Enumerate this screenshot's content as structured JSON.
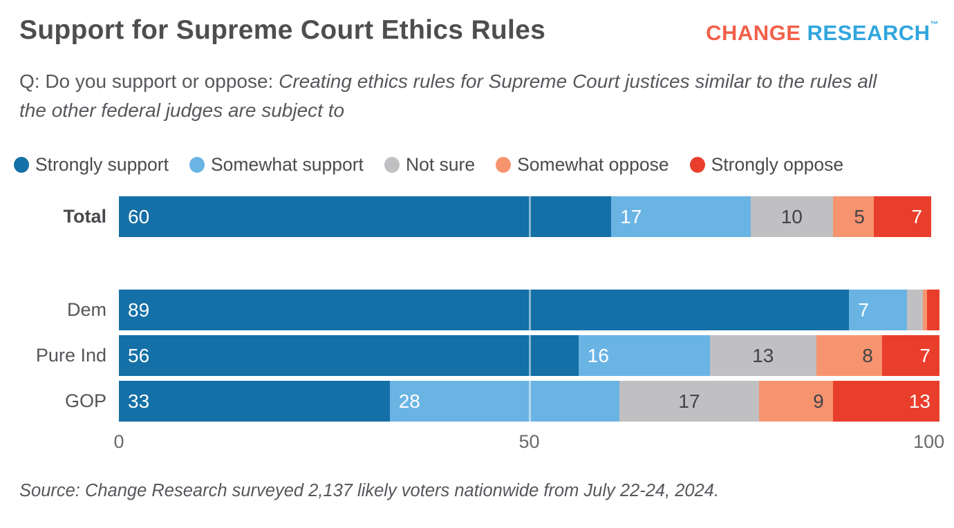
{
  "header": {
    "title": "Support for Supreme Court Ethics Rules",
    "logo": {
      "word1": "CHANGE ",
      "word2": "RESEARCH",
      "tm": "™"
    }
  },
  "question": {
    "prefix": "Q: Do you support or oppose: ",
    "italic": "Creating ethics rules for Supreme Court justices similar to the rules all the other federal judges are subject to"
  },
  "chart_data": {
    "type": "bar",
    "orientation": "horizontal",
    "stacked": true,
    "categories": [
      "Total",
      "Dem",
      "Pure Ind",
      "GOP"
    ],
    "series": [
      {
        "name": "Strongly support",
        "color": "#1470a6",
        "text_color": "#ffffff",
        "label_align": "left",
        "values": [
          60,
          89,
          56,
          33
        ]
      },
      {
        "name": "Somewhat support",
        "color": "#6ab4e4",
        "text_color": "#ffffff",
        "label_align": "left",
        "values": [
          17,
          7,
          16,
          28
        ]
      },
      {
        "name": "Not sure",
        "color": "#c0c0c2",
        "text_color": "#414347",
        "label_align": "center",
        "values": [
          10,
          2,
          13,
          17
        ]
      },
      {
        "name": "Somewhat oppose",
        "color": "#f6946f",
        "text_color": "#414347",
        "label_align": "right",
        "values": [
          5,
          0.5,
          8,
          9
        ]
      },
      {
        "name": "Strongly oppose",
        "color": "#ea3e2c",
        "text_color": "#ffffff",
        "label_align": "right",
        "values": [
          7,
          1.5,
          7,
          13
        ]
      }
    ],
    "xlim": [
      0,
      100
    ],
    "xticks": [
      "0",
      "50",
      "100"
    ],
    "gridline_at": 50,
    "label_min_value": 4,
    "legend_position": "top",
    "grid": "single white line at 50 over bars"
  },
  "source": "Source: Change Research surveyed 2,137 likely voters nationwide from July 22-24, 2024."
}
